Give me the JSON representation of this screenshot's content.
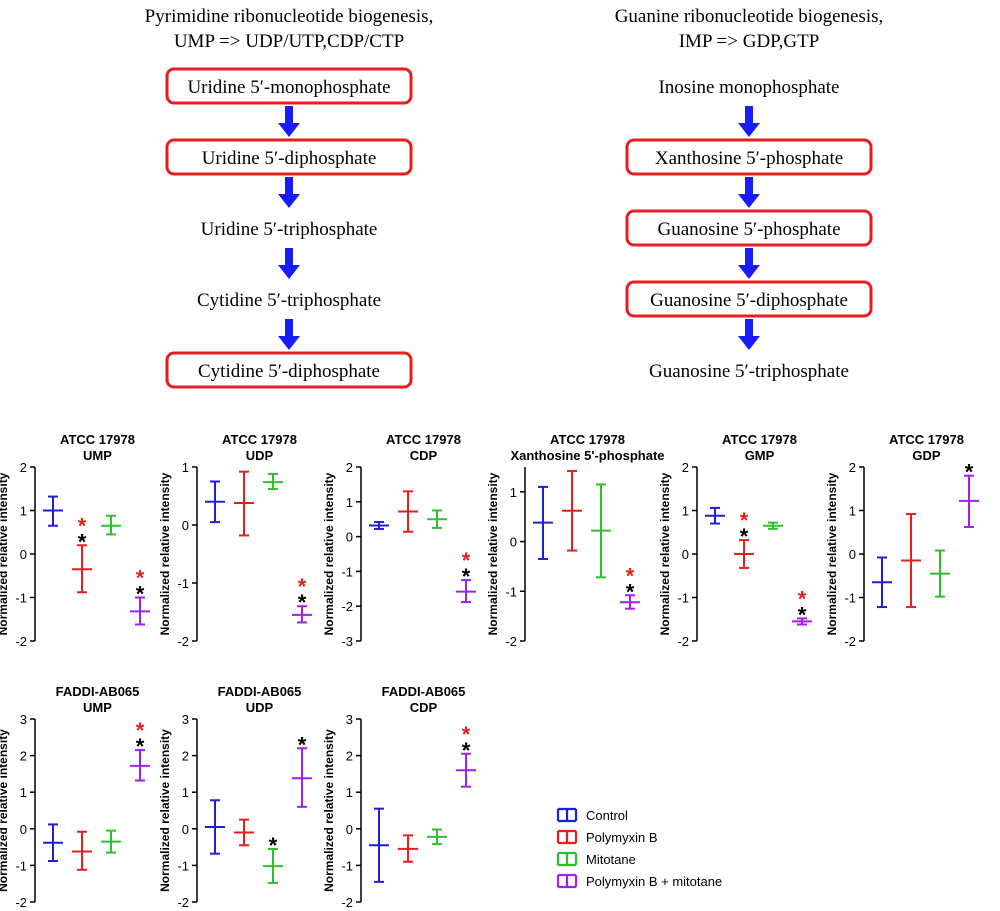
{
  "colors": {
    "control": "#1f1fd6",
    "polymyxin": "#e81e1e",
    "mitotane": "#2fbf2f",
    "combo": "#a020f0",
    "sig_red": "#e81e1e",
    "sig_black": "#000000",
    "box": "#e81e1e",
    "arrow": "#1a1aff"
  },
  "pathways": {
    "pyrimidine": {
      "title_line1": "Pyrimidine ribonucleotide biogenesis,",
      "title_line2": "UMP => UDP/UTP,CDP/CTP",
      "steps": [
        {
          "label": "Uridine 5′-monophosphate",
          "boxed": true
        },
        {
          "label": "Uridine 5′-diphosphate",
          "boxed": true
        },
        {
          "label": "Uridine 5′-triphosphate",
          "boxed": false
        },
        {
          "label": "Cytidine 5′-triphosphate",
          "boxed": false
        },
        {
          "label": "Cytidine 5′-diphosphate",
          "boxed": true
        }
      ]
    },
    "guanine": {
      "title_line1": "Guanine ribonucleotide biogenesis,",
      "title_line2": "IMP => GDP,GTP",
      "steps": [
        {
          "label": "Inosine monophosphate",
          "boxed": false
        },
        {
          "label": "Xanthosine 5′-phosphate",
          "boxed": true
        },
        {
          "label": "Guanosine 5′-phosphate",
          "boxed": true
        },
        {
          "label": "Guanosine 5′-diphosphate",
          "boxed": true
        },
        {
          "label": "Guanosine 5′-triphosphate",
          "boxed": false
        }
      ]
    }
  },
  "legend": {
    "items": [
      {
        "label": "Control",
        "group": "control"
      },
      {
        "label": "Polymyxin B",
        "group": "polymyxin"
      },
      {
        "label": "Mitotane",
        "group": "mitotane"
      },
      {
        "label": "Polymyxin B + mitotane",
        "group": "combo"
      }
    ]
  },
  "chart_data": [
    {
      "type": "error-bar",
      "title_line1": "ATCC 17978",
      "title_line2": "UMP",
      "ylabel": "Normalized relative intensity",
      "ylim": [
        -2,
        2
      ],
      "yticks": [
        "-2",
        "-1",
        "0",
        "1",
        "2"
      ],
      "series": [
        {
          "name": "Control",
          "group": "control",
          "mean": 1.0,
          "low": 0.65,
          "high": 1.32,
          "stars": []
        },
        {
          "name": "Polymyxin B",
          "group": "polymyxin",
          "mean": -0.35,
          "low": -0.88,
          "high": 0.2,
          "stars": [
            "red",
            "black"
          ]
        },
        {
          "name": "Mitotane",
          "group": "mitotane",
          "mean": 0.65,
          "low": 0.45,
          "high": 0.88,
          "stars": []
        },
        {
          "name": "Polymyxin B + mitotane",
          "group": "combo",
          "mean": -1.32,
          "low": -1.62,
          "high": -1.0,
          "stars": [
            "red",
            "black"
          ]
        }
      ]
    },
    {
      "type": "error-bar",
      "title_line1": "ATCC 17978",
      "title_line2": "UDP",
      "ylabel": "Normalized relative intensity",
      "ylim": [
        -2,
        1
      ],
      "yticks": [
        "-2",
        "-1",
        "0",
        "1"
      ],
      "series": [
        {
          "name": "Control",
          "group": "control",
          "mean": 0.4,
          "low": 0.05,
          "high": 0.75,
          "stars": []
        },
        {
          "name": "Polymyxin B",
          "group": "polymyxin",
          "mean": 0.38,
          "low": -0.18,
          "high": 0.92,
          "stars": []
        },
        {
          "name": "Mitotane",
          "group": "mitotane",
          "mean": 0.74,
          "low": 0.62,
          "high": 0.88,
          "stars": []
        },
        {
          "name": "Polymyxin B + mitotane",
          "group": "combo",
          "mean": -1.55,
          "low": -1.68,
          "high": -1.4,
          "stars": [
            "red",
            "black"
          ]
        }
      ]
    },
    {
      "type": "error-bar",
      "title_line1": "ATCC 17978",
      "title_line2": "CDP",
      "ylabel": "Normalized relative intensity",
      "ylim": [
        -3,
        2
      ],
      "yticks": [
        "-3",
        "-2",
        "-1",
        "0",
        "1",
        "2"
      ],
      "series": [
        {
          "name": "Control",
          "group": "control",
          "mean": 0.32,
          "low": 0.22,
          "high": 0.42,
          "stars": []
        },
        {
          "name": "Polymyxin B",
          "group": "polymyxin",
          "mean": 0.72,
          "low": 0.14,
          "high": 1.3,
          "stars": []
        },
        {
          "name": "Mitotane",
          "group": "mitotane",
          "mean": 0.5,
          "low": 0.25,
          "high": 0.75,
          "stars": []
        },
        {
          "name": "Polymyxin B + mitotane",
          "group": "combo",
          "mean": -1.58,
          "low": -1.88,
          "high": -1.25,
          "stars": [
            "red",
            "black"
          ]
        }
      ]
    },
    {
      "type": "error-bar",
      "title_line1": "ATCC 17978",
      "title_line2": "Xanthosine 5'-phosphate",
      "ylabel": "Normalized relative intensity",
      "ylim": [
        -2,
        1.5
      ],
      "yticks": [
        "-2",
        "-1",
        "0",
        "1"
      ],
      "series": [
        {
          "name": "Control",
          "group": "control",
          "mean": 0.38,
          "low": -0.35,
          "high": 1.1,
          "stars": []
        },
        {
          "name": "Polymyxin B",
          "group": "polymyxin",
          "mean": 0.62,
          "low": -0.18,
          "high": 1.42,
          "stars": []
        },
        {
          "name": "Mitotane",
          "group": "mitotane",
          "mean": 0.22,
          "low": -0.72,
          "high": 1.15,
          "stars": []
        },
        {
          "name": "Polymyxin B + mitotane",
          "group": "combo",
          "mean": -1.22,
          "low": -1.35,
          "high": -1.08,
          "stars": [
            "red",
            "black"
          ]
        }
      ]
    },
    {
      "type": "error-bar",
      "title_line1": "ATCC 17978",
      "title_line2": "GMP",
      "ylabel": "Normalized relative intensity",
      "ylim": [
        -2,
        2
      ],
      "yticks": [
        "-2",
        "-1",
        "0",
        "1",
        "2"
      ],
      "series": [
        {
          "name": "Control",
          "group": "control",
          "mean": 0.88,
          "low": 0.7,
          "high": 1.06,
          "stars": []
        },
        {
          "name": "Polymyxin B",
          "group": "polymyxin",
          "mean": 0.0,
          "low": -0.32,
          "high": 0.32,
          "stars": [
            "red",
            "black"
          ]
        },
        {
          "name": "Mitotane",
          "group": "mitotane",
          "mean": 0.65,
          "low": 0.58,
          "high": 0.72,
          "stars": []
        },
        {
          "name": "Polymyxin B + mitotane",
          "group": "combo",
          "mean": -1.55,
          "low": -1.62,
          "high": -1.48,
          "stars": [
            "red",
            "black"
          ]
        }
      ]
    },
    {
      "type": "error-bar",
      "title_line1": "ATCC 17978",
      "title_line2": "GDP",
      "ylabel": "Normalized relative intensity",
      "ylim": [
        -2,
        2
      ],
      "yticks": [
        "-2",
        "-1",
        "0",
        "1",
        "2"
      ],
      "series": [
        {
          "name": "Control",
          "group": "control",
          "mean": -0.65,
          "low": -1.22,
          "high": -0.08,
          "stars": []
        },
        {
          "name": "Polymyxin B",
          "group": "polymyxin",
          "mean": -0.15,
          "low": -1.22,
          "high": 0.92,
          "stars": []
        },
        {
          "name": "Mitotane",
          "group": "mitotane",
          "mean": -0.45,
          "low": -0.98,
          "high": 0.08,
          "stars": []
        },
        {
          "name": "Polymyxin B + mitotane",
          "group": "combo",
          "mean": 1.22,
          "low": 0.62,
          "high": 1.8,
          "stars": [
            "black"
          ]
        }
      ]
    },
    {
      "type": "error-bar",
      "title_line1": "FADDI-AB065",
      "title_line2": "UMP",
      "ylabel": "Normalized relative intensity",
      "ylim": [
        -2,
        3
      ],
      "yticks": [
        "-2",
        "-1",
        "0",
        "1",
        "2",
        "3"
      ],
      "series": [
        {
          "name": "Control",
          "group": "control",
          "mean": -0.38,
          "low": -0.88,
          "high": 0.12,
          "stars": []
        },
        {
          "name": "Polymyxin B",
          "group": "polymyxin",
          "mean": -0.62,
          "low": -1.12,
          "high": -0.08,
          "stars": []
        },
        {
          "name": "Mitotane",
          "group": "mitotane",
          "mean": -0.35,
          "low": -0.65,
          "high": -0.05,
          "stars": []
        },
        {
          "name": "Polymyxin B + mitotane",
          "group": "combo",
          "mean": 1.72,
          "low": 1.32,
          "high": 2.15,
          "stars": [
            "red",
            "black"
          ]
        }
      ]
    },
    {
      "type": "error-bar",
      "title_line1": "FADDI-AB065",
      "title_line2": "UDP",
      "ylabel": "Normalized relative intensity",
      "ylim": [
        -2,
        3
      ],
      "yticks": [
        "-2",
        "-1",
        "0",
        "1",
        "2",
        "3"
      ],
      "series": [
        {
          "name": "Control",
          "group": "control",
          "mean": 0.05,
          "low": -0.68,
          "high": 0.78,
          "stars": []
        },
        {
          "name": "Polymyxin B",
          "group": "polymyxin",
          "mean": -0.1,
          "low": -0.45,
          "high": 0.25,
          "stars": []
        },
        {
          "name": "Mitotane",
          "group": "mitotane",
          "mean": -1.02,
          "low": -1.48,
          "high": -0.55,
          "stars": [
            "black"
          ]
        },
        {
          "name": "Polymyxin B + mitotane",
          "group": "combo",
          "mean": 1.38,
          "low": 0.6,
          "high": 2.2,
          "stars": [
            "black"
          ]
        }
      ]
    },
    {
      "type": "error-bar",
      "title_line1": "FADDI-AB065",
      "title_line2": "CDP",
      "ylabel": "Normalized relative intensity",
      "ylim": [
        -2,
        3
      ],
      "yticks": [
        "-2",
        "-1",
        "0",
        "1",
        "2",
        "3"
      ],
      "series": [
        {
          "name": "Control",
          "group": "control",
          "mean": -0.45,
          "low": -1.45,
          "high": 0.55,
          "stars": []
        },
        {
          "name": "Polymyxin B",
          "group": "polymyxin",
          "mean": -0.55,
          "low": -0.9,
          "high": -0.18,
          "stars": []
        },
        {
          "name": "Mitotane",
          "group": "mitotane",
          "mean": -0.22,
          "low": -0.42,
          "high": -0.02,
          "stars": []
        },
        {
          "name": "Polymyxin B + mitotane",
          "group": "combo",
          "mean": 1.6,
          "low": 1.15,
          "high": 2.05,
          "stars": [
            "red",
            "black"
          ]
        }
      ]
    }
  ]
}
